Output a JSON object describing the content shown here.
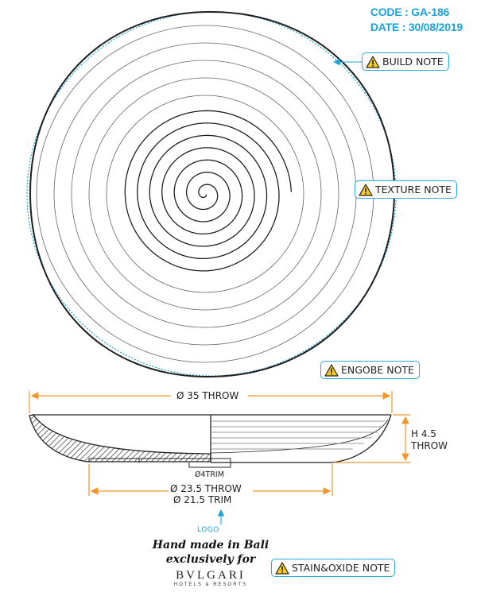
{
  "header": {
    "code": "CODE : GA-186",
    "date": "DATE : 30/08/2019"
  },
  "notes": {
    "build": "BUILD NOTE",
    "texture": "TEXTURE NOTE",
    "engobe": "ENGOBE NOTE",
    "stain_oxide": "STAIN&OXIDE NOTE"
  },
  "dimensions": {
    "diameter_throw": "Ø 35 THROW",
    "height_line1": "H 4.5",
    "height_line2": "THROW",
    "trim": "Ø4TRIM",
    "base_throw": "Ø 23.5 THROW",
    "base_trim": "Ø 21.5 TRIM"
  },
  "logo": {
    "label": "LOGO",
    "handmade_line1": "Hand made in Bali",
    "handmade_line2": "exclusively for",
    "brand": "BVLGARI",
    "brand_sub": "HOTELS & RESORTS"
  },
  "colors": {
    "accent_blue": "#1aa3d9",
    "note_border": "#2aa8dc",
    "dimension_orange": "#f0962c",
    "warning_yellow": "#f7c81e",
    "line_dark": "#222222"
  },
  "icons": {
    "warning": "warning-triangle-icon"
  }
}
